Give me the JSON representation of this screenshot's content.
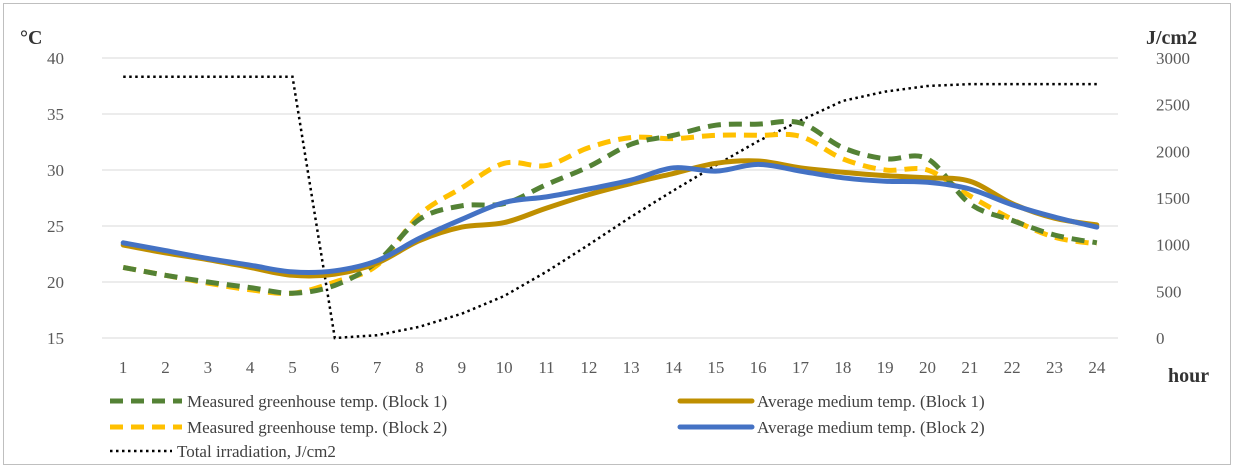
{
  "chart_data": {
    "type": "line",
    "x": [
      1,
      2,
      3,
      4,
      5,
      6,
      7,
      8,
      9,
      10,
      11,
      12,
      13,
      14,
      15,
      16,
      17,
      18,
      19,
      20,
      21,
      22,
      23,
      24
    ],
    "y_left_label": "°C",
    "y_right_label": "J/cm2",
    "x_unit_label": "hour",
    "y_left_lim": [
      15,
      40
    ],
    "y_left_ticks": [
      "15",
      "20",
      "25",
      "30",
      "35",
      "40"
    ],
    "y_right_lim": [
      0,
      3000
    ],
    "y_right_ticks": [
      "0",
      "500",
      "1000",
      "1500",
      "2000",
      "2500",
      "3000"
    ],
    "x_ticks": [
      "1",
      "2",
      "3",
      "4",
      "5",
      "6",
      "7",
      "8",
      "9",
      "10",
      "11",
      "12",
      "13",
      "14",
      "15",
      "16",
      "17",
      "18",
      "19",
      "20",
      "21",
      "22",
      "23",
      "24"
    ],
    "grid": "horizontal",
    "legend_position": "bottom",
    "series": [
      {
        "name": "Measured greenhouse temp. (Block 1)",
        "axis": "left",
        "color": "#548235",
        "style": "dashed",
        "values": [
          21.3,
          20.6,
          20.0,
          19.5,
          19.0,
          19.7,
          21.8,
          25.6,
          26.8,
          27.0,
          28.7,
          30.3,
          32.3,
          33.1,
          34.0,
          34.1,
          34.2,
          32.0,
          31.0,
          31.0,
          27.0,
          25.5,
          24.2,
          23.5
        ]
      },
      {
        "name": "Measured greenhouse temp. (Block 2)",
        "axis": "left",
        "color": "#ffc000",
        "style": "dashed",
        "values": [
          21.3,
          20.6,
          19.9,
          19.3,
          19.0,
          20.0,
          21.5,
          26.0,
          28.4,
          30.6,
          30.4,
          32.0,
          32.9,
          32.8,
          33.1,
          33.1,
          33.0,
          31.0,
          30.0,
          30.0,
          27.7,
          25.6,
          24.0,
          23.4
        ]
      },
      {
        "name": "Average medium temp. (Block 1)",
        "axis": "left",
        "color": "#bf8f00",
        "style": "solid",
        "values": [
          23.3,
          22.6,
          22.0,
          21.3,
          20.6,
          20.7,
          21.7,
          23.7,
          24.9,
          25.3,
          26.6,
          27.8,
          28.8,
          29.7,
          30.6,
          30.8,
          30.2,
          29.8,
          29.5,
          29.3,
          29.0,
          27.0,
          25.7,
          25.1
        ]
      },
      {
        "name": "Average medium temp. (Block 2)",
        "axis": "left",
        "color": "#4472c4",
        "style": "solid",
        "values": [
          23.5,
          22.8,
          22.1,
          21.5,
          20.9,
          21.0,
          21.9,
          23.9,
          25.6,
          27.1,
          27.6,
          28.3,
          29.1,
          30.2,
          29.9,
          30.5,
          29.9,
          29.3,
          29.0,
          28.9,
          28.3,
          26.9,
          25.8,
          24.9
        ]
      },
      {
        "name": "Total irradiation, J/cm2",
        "axis": "right",
        "color": "#000000",
        "style": "dotted",
        "values": [
          2800,
          2800,
          2800,
          2800,
          2800,
          0,
          30,
          120,
          260,
          450,
          710,
          1000,
          1300,
          1580,
          1850,
          2110,
          2330,
          2540,
          2640,
          2700,
          2720,
          2720,
          2720,
          2720
        ]
      }
    ]
  }
}
